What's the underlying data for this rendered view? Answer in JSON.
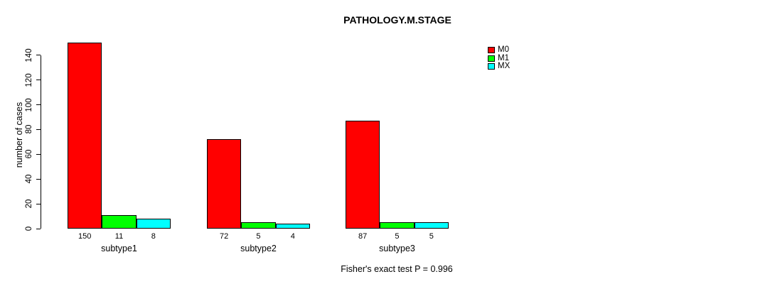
{
  "title": "PATHOLOGY.M.STAGE",
  "chart_data": {
    "type": "bar",
    "title": "PATHOLOGY.M.STAGE",
    "categories": [
      "subtype1",
      "subtype2",
      "subtype3"
    ],
    "series": [
      {
        "name": "M0",
        "color": "#ff0000",
        "values": [
          150,
          72,
          87
        ]
      },
      {
        "name": "M1",
        "color": "#00ff00",
        "values": [
          11,
          5,
          5
        ]
      },
      {
        "name": "MX",
        "color": "#00ffff",
        "values": [
          8,
          4,
          5
        ]
      }
    ],
    "xlabel": "",
    "ylabel": "number of cases",
    "ylim": [
      0,
      140
    ],
    "yticks": [
      0,
      20,
      40,
      60,
      80,
      100,
      120,
      140
    ],
    "grid": false,
    "legend_position": "right",
    "bar_value_labels": true,
    "annotation": "Fisher's exact test P = 0.996",
    "axis_color": "#000000",
    "background_color": "#ffffff"
  }
}
